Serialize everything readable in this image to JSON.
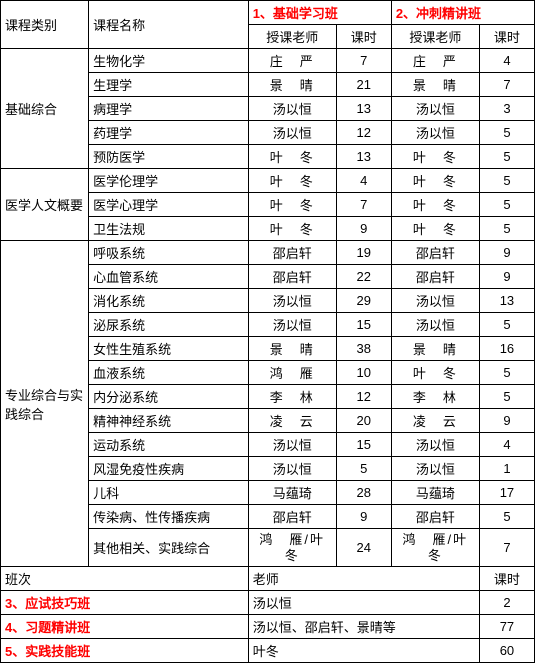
{
  "header": {
    "category": "课程类别",
    "course_name": "课程名称",
    "class1": "1、基础学习班",
    "class2": "2、冲刺精讲班",
    "teacher": "授课老师",
    "hours": "课时"
  },
  "categories": [
    {
      "label": "基础综合",
      "rows": [
        {
          "name": "生物化学",
          "t1": "庄　严",
          "h1": "7",
          "t2": "庄　严",
          "h2": "4",
          "tight": false
        },
        {
          "name": "生理学",
          "t1": "景　晴",
          "h1": "21",
          "t2": "景　晴",
          "h2": "7",
          "tight": false
        },
        {
          "name": "病理学",
          "t1": "汤以恒",
          "h1": "13",
          "t2": "汤以恒",
          "h2": "3",
          "tight": true
        },
        {
          "name": "药理学",
          "t1": "汤以恒",
          "h1": "12",
          "t2": "汤以恒",
          "h2": "5",
          "tight": true
        },
        {
          "name": "预防医学",
          "t1": "叶　冬",
          "h1": "13",
          "t2": "叶　冬",
          "h2": "5",
          "tight": false
        }
      ]
    },
    {
      "label": "医学人文概要",
      "rows": [
        {
          "name": "医学伦理学",
          "t1": "叶　冬",
          "h1": "4",
          "t2": "叶　冬",
          "h2": "5",
          "tight": false
        },
        {
          "name": "医学心理学",
          "t1": "叶　冬",
          "h1": "7",
          "t2": "叶　冬",
          "h2": "5",
          "tight": false
        },
        {
          "name": "卫生法规",
          "t1": "叶　冬",
          "h1": "9",
          "t2": "叶　冬",
          "h2": "5",
          "tight": false
        }
      ]
    },
    {
      "label": "专业综合与实践综合",
      "rows": [
        {
          "name": "呼吸系统",
          "t1": "邵启轩",
          "h1": "19",
          "t2": "邵启轩",
          "h2": "9",
          "tight": true
        },
        {
          "name": "心血管系统",
          "t1": "邵启轩",
          "h1": "22",
          "t2": "邵启轩",
          "h2": "9",
          "tight": true
        },
        {
          "name": "消化系统",
          "t1": "汤以恒",
          "h1": "29",
          "t2": "汤以恒",
          "h2": "13",
          "tight": true
        },
        {
          "name": "泌尿系统",
          "t1": "汤以恒",
          "h1": "15",
          "t2": "汤以恒",
          "h2": "5",
          "tight": true
        },
        {
          "name": "女性生殖系统",
          "t1": "景　晴",
          "h1": "38",
          "t2": "景　晴",
          "h2": "16",
          "tight": false
        },
        {
          "name": "血液系统",
          "t1": "鸿　雁",
          "h1": "10",
          "t2": "叶　冬",
          "h2": "5",
          "tight": false
        },
        {
          "name": "内分泌系统",
          "t1": "李　林",
          "h1": "12",
          "t2": "李　林",
          "h2": "5",
          "tight": false
        },
        {
          "name": "精神神经系统",
          "t1": "凌　云",
          "h1": "20",
          "t2": "凌　云",
          "h2": "9",
          "tight": false
        },
        {
          "name": "运动系统",
          "t1": "汤以恒",
          "h1": "15",
          "t2": "汤以恒",
          "h2": "4",
          "tight": true
        },
        {
          "name": "风湿免疫性疾病",
          "t1": "汤以恒",
          "h1": "5",
          "t2": "汤以恒",
          "h2": "1",
          "tight": true
        },
        {
          "name": "儿科",
          "t1": "马蕴琦",
          "h1": "28",
          "t2": "马蕴琦",
          "h2": "17",
          "tight": true
        },
        {
          "name": "传染病、性传播疾病",
          "t1": "邵启轩",
          "h1": "9",
          "t2": "邵启轩",
          "h2": "5",
          "tight": true
        },
        {
          "name": "其他相关、实践综合",
          "t1": "鸿　雁/叶　冬",
          "h1": "24",
          "t2": "鸿　雁/叶　冬",
          "h2": "7",
          "tight": false,
          "tall": true
        }
      ]
    }
  ],
  "section2": {
    "header": {
      "class": "班次",
      "teacher": "老师",
      "hours": "课时"
    },
    "rows": [
      {
        "name": "3、应试技巧班",
        "teacher": "汤以恒",
        "hours": "2"
      },
      {
        "name": "4、习题精讲班",
        "teacher": "汤以恒、邵启轩、景晴等",
        "hours": "77"
      },
      {
        "name": "5、实践技能班",
        "teacher": "叶冬",
        "hours": "60"
      }
    ]
  },
  "colwidths": {
    "c1": 80,
    "c2": 145,
    "c3": 80,
    "c4": 50,
    "c5": 80,
    "c6": 50
  }
}
